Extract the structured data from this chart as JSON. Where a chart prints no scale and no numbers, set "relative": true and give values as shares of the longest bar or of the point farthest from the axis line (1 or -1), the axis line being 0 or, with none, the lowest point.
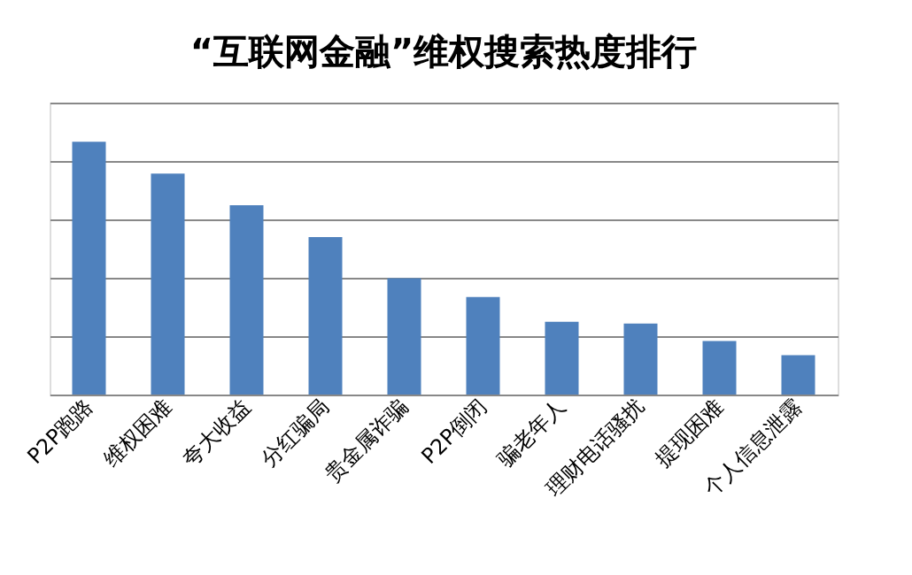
{
  "chart_data": {
    "type": "bar",
    "title": "“互联网金融”维权搜索热度排行",
    "relative": true,
    "grid": "y",
    "categories": [
      "P2P跑路",
      "维权困难",
      "夸大收益",
      "分红骗局",
      "贵金属诈骗",
      "P2P倒闭",
      "骗老年人",
      "理财电话骚扰",
      "提现困难",
      "个人信息泄露"
    ],
    "series": [
      {
        "color": "#4f81bd",
        "values": [
          1,
          0.874,
          0.749,
          0.623,
          0.46,
          0.386,
          0.288,
          0.281,
          0.212,
          0.156
        ]
      }
    ]
  }
}
